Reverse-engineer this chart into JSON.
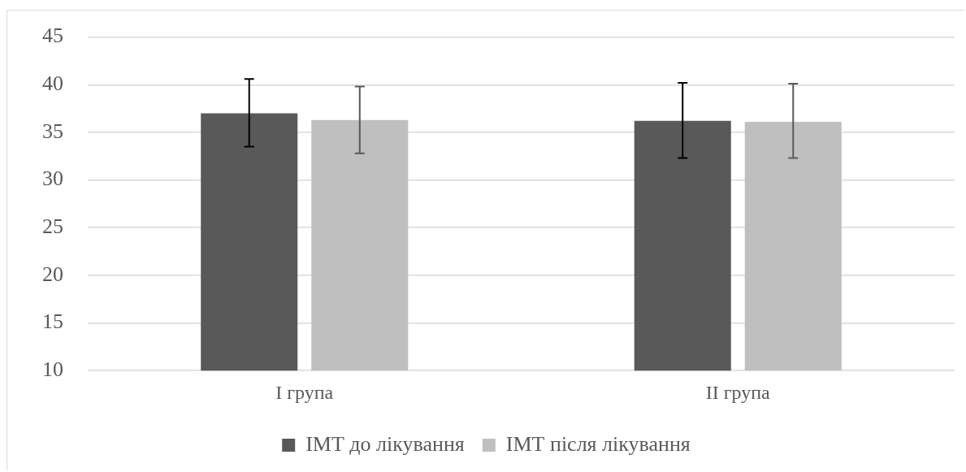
{
  "chart_data": {
    "type": "bar",
    "categories": [
      "I група",
      "II група"
    ],
    "series": [
      {
        "name": "ІМТ до лікування",
        "color": "#595959",
        "values": [
          37.0,
          36.2
        ],
        "errors": [
          [
            33.5,
            40.6
          ],
          [
            32.3,
            40.2
          ]
        ]
      },
      {
        "name": "ІМТ після лікування",
        "color": "#bfbfbf",
        "values": [
          36.3,
          36.1
        ],
        "errors": [
          [
            32.8,
            39.8
          ],
          [
            32.3,
            40.1
          ]
        ]
      }
    ],
    "ylim": [
      10,
      45
    ],
    "yticks": [
      10,
      15,
      20,
      25,
      30,
      35,
      40,
      45
    ],
    "grid": "y",
    "legend": "bottom"
  }
}
